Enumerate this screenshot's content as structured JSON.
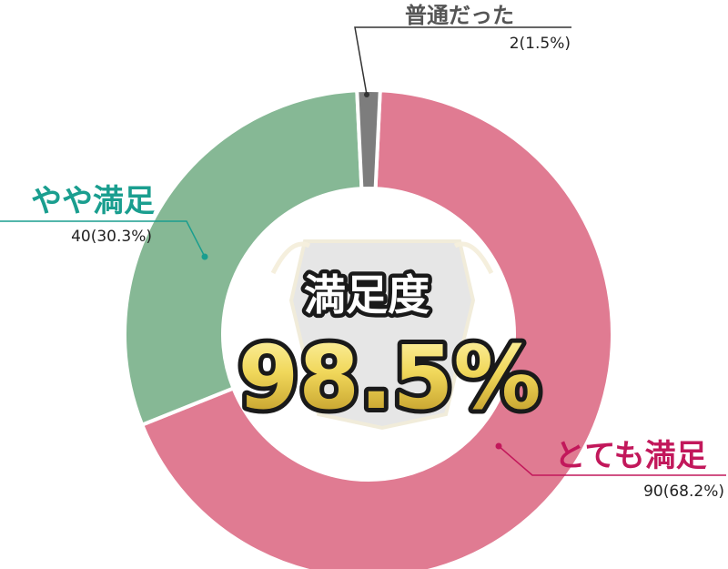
{
  "chart_data": {
    "type": "pie",
    "style": "donut",
    "categories": [
      "とても満足",
      "やや満足",
      "普通だった"
    ],
    "values": [
      90,
      40,
      2
    ],
    "value_labels": [
      "90(68.2%)",
      "40(30.3%)",
      "2(1.5%)"
    ],
    "colors": [
      "#e07b92",
      "#86b895",
      "#7d7d7d"
    ],
    "label_colors": [
      "#c2185b",
      "#1a9e8f",
      "#555555"
    ]
  },
  "center": {
    "title": "満足度",
    "value": "98.5%"
  }
}
